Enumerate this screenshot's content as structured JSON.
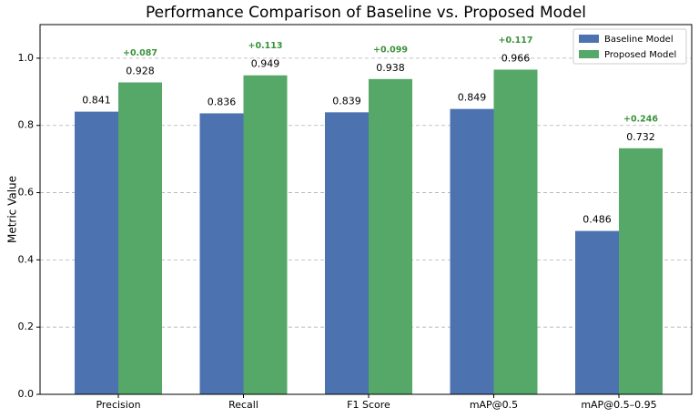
{
  "chart_data": {
    "type": "bar",
    "title": "Performance Comparison of Baseline vs. Proposed Model",
    "y_label": "Metric Value",
    "categories": [
      "Precision",
      "Recall",
      "F1 Score",
      "mAP@0.5",
      "mAP@0.5–0.95"
    ],
    "series": [
      {
        "name": "Baseline Model",
        "color": "#4c72b0",
        "values": [
          0.841,
          0.836,
          0.839,
          0.849,
          0.486
        ]
      },
      {
        "name": "Proposed Model",
        "color": "#55a868",
        "values": [
          0.928,
          0.949,
          0.938,
          0.966,
          0.732
        ]
      }
    ],
    "annotations": [
      "+0.087",
      "+0.113",
      "+0.099",
      "+0.117",
      "+0.246"
    ],
    "annotation_color": "#3a923a",
    "ylim": [
      0,
      1.1
    ],
    "yticks": [
      {
        "value": 0,
        "label": "0.0"
      },
      0.2,
      0.4,
      0.6,
      0.8,
      {
        "value": 1,
        "label": "1.0"
      }
    ],
    "grid": true,
    "legend": "upper-right"
  }
}
